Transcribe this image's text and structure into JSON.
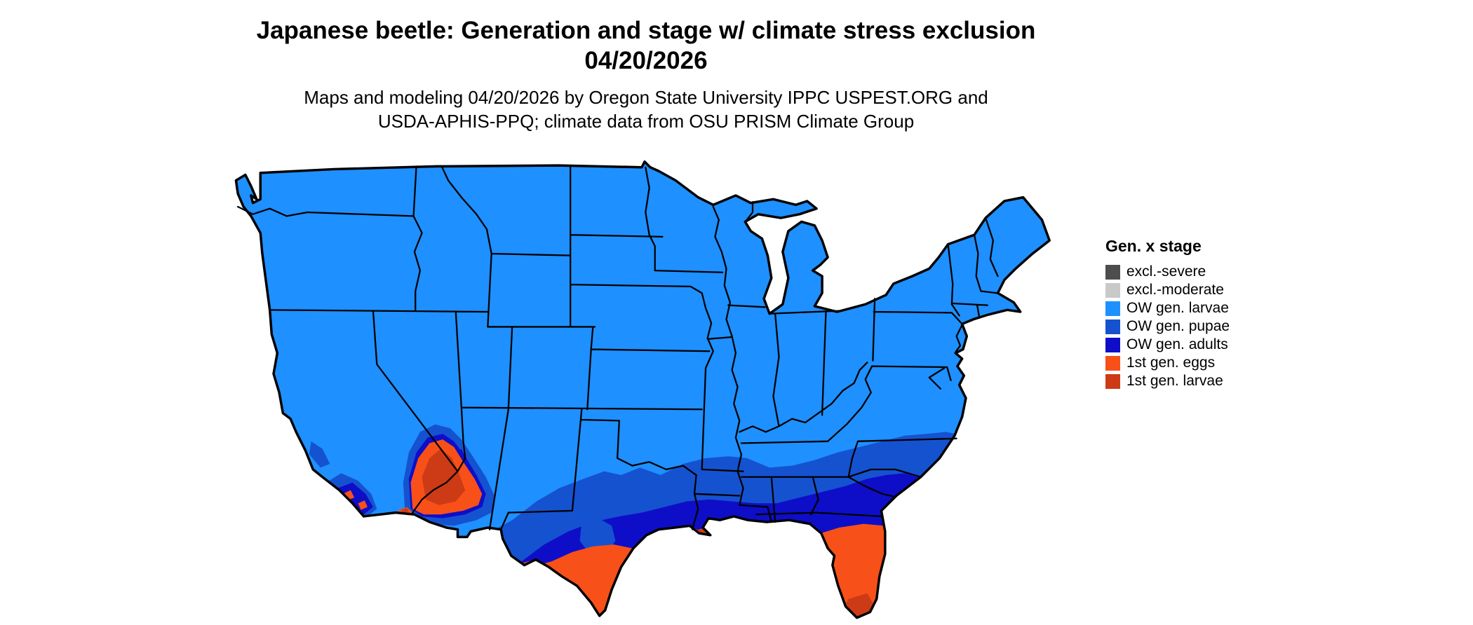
{
  "title": {
    "line1": "Japanese beetle: Generation and stage w/ climate stress exclusion",
    "line2": "04/20/2026"
  },
  "subtitle": {
    "line1": "Maps and modeling 04/20/2026 by Oregon State University IPPC USPEST.ORG and",
    "line2": "USDA-APHIS-PPQ; climate data from OSU PRISM Climate Group"
  },
  "legend": {
    "title": "Gen. x stage",
    "items": [
      {
        "id": "excl-severe",
        "label": "excl.-severe",
        "color": "#4D4D4D"
      },
      {
        "id": "excl-moderate",
        "label": "excl.-moderate",
        "color": "#C9C9C9"
      },
      {
        "id": "ow-larvae",
        "label": "OW gen. larvae",
        "color": "#1E90FF"
      },
      {
        "id": "ow-pupae",
        "label": "OW gen. pupae",
        "color": "#1552D0"
      },
      {
        "id": "ow-adults",
        "label": "OW gen. adults",
        "color": "#0E0EC8"
      },
      {
        "id": "gen1-eggs",
        "label": "1st gen. eggs",
        "color": "#F85019"
      },
      {
        "id": "gen1-larvae",
        "label": "1st gen. larvae",
        "color": "#CC3B16"
      }
    ]
  },
  "map": {
    "region": "Contiguous United States",
    "date_shown": "04/20/2026",
    "stage_extents": {
      "ow_larvae": "Most of the northern and central US",
      "ow_pupae": "Southern Plains through the Southeast interior, coastal mid-Atlantic, southern Arizona fringe, coastal southern California",
      "ow_adults": "Central/south Texas, Gulf Coast states, southern Georgia, north Florida panhandle",
      "gen1_eggs": "South Texas, Florida peninsula, low deserts of southwest Arizona, Louisiana coastal fringe",
      "gen1_larvae": "Lower Rio Grande valley, southwest Arizona core, far south Florida and Keys"
    }
  }
}
